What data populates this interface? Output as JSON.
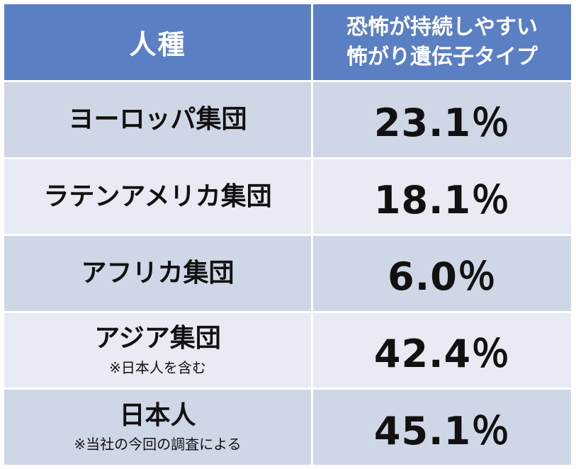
{
  "header": {
    "race_label": "人種",
    "desc_line1": "恐怖が持続しやすい",
    "desc_line2": "怖がり遺伝子タイプ"
  },
  "rows": [
    {
      "group": "ヨーロッパ集団",
      "note": "",
      "percent": "23.1％"
    },
    {
      "group": "ラテンアメリカ集団",
      "note": "",
      "percent": "18.1％"
    },
    {
      "group": "アフリカ集団",
      "note": "",
      "percent": "6.0％"
    },
    {
      "group": "アジア集団",
      "note": "※日本人を含む",
      "percent": "42.4％"
    },
    {
      "group": "日本人",
      "note": "※当社の今回の調査による",
      "percent": "45.1％"
    }
  ],
  "colors": {
    "header_bg": "#5b7fc3",
    "row_dark": "#cfd6e6",
    "row_light": "#e8ebf3"
  }
}
